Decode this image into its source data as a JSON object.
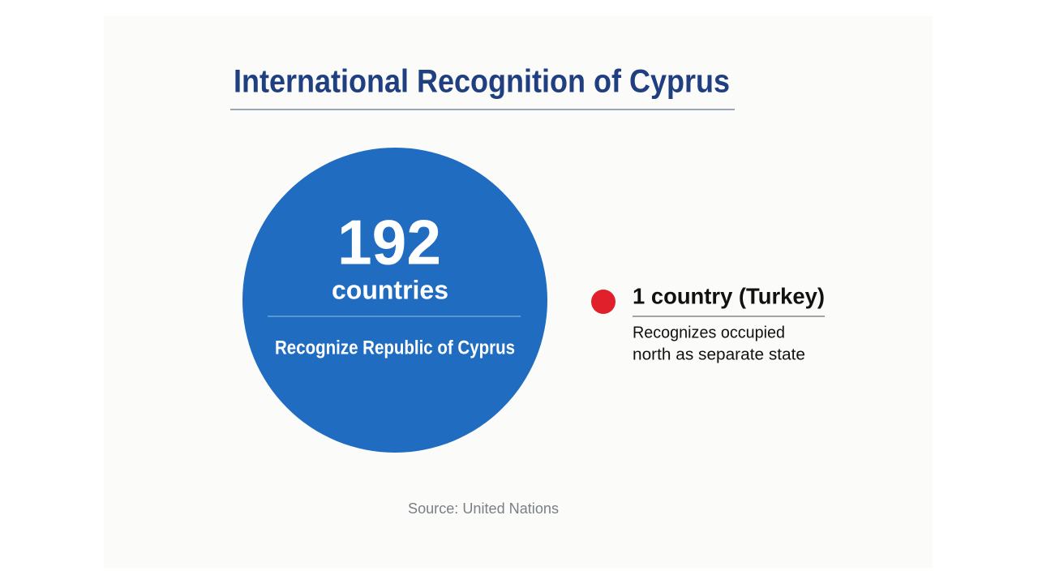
{
  "title": "International Recognition of Cyprus",
  "main": {
    "number": 192,
    "unit": "countries",
    "label": "Recognize Republic of Cyprus"
  },
  "other": {
    "heading": "1 country (Turkey)",
    "description_lines": [
      "Recognizes occupied",
      "north as separate state"
    ]
  },
  "source": "Source: United Nations"
}
